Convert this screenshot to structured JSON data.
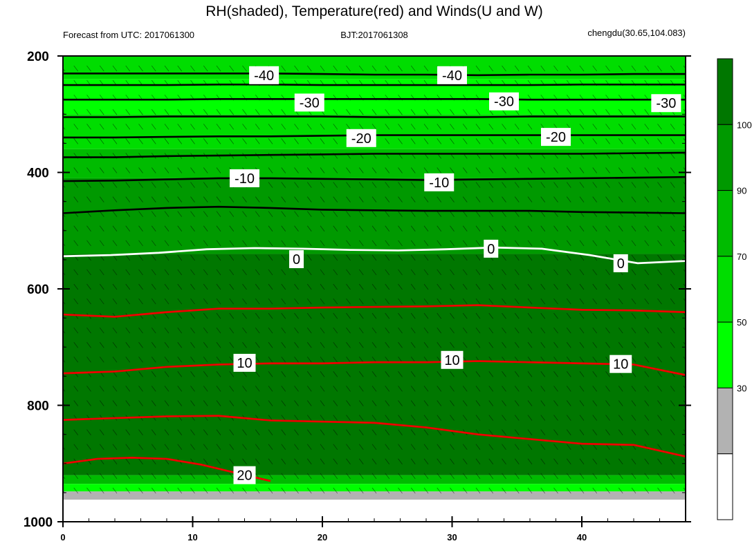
{
  "title": "RH(shaded), Temperature(red) and Winds(U and W)",
  "subtitle_left": "Forecast from UTC: 2017061300",
  "subtitle_center": "BJT:2017061308",
  "subtitle_right": "chengdu(30.65,104.083)",
  "chart_data": {
    "type": "heatmap",
    "title": "RH(shaded), Temperature(red) and Winds(U and W)",
    "xlim": [
      0,
      48
    ],
    "xticks": [
      0,
      10,
      20,
      30,
      40
    ],
    "ylim": [
      200,
      1000
    ],
    "yticks": [
      200,
      400,
      600,
      800,
      1000
    ],
    "colorbar": {
      "levels": [
        30,
        50,
        70,
        90,
        100
      ],
      "colors": [
        "#ffffff",
        "#b2b2b2",
        "#00ff00",
        "#00dd00",
        "#00bb00",
        "#009900",
        "#007700"
      ]
    },
    "rh_bands": [
      {
        "from": 200,
        "to": 240,
        "color": "#00dd00"
      },
      {
        "from": 240,
        "to": 300,
        "color": "#00ff00"
      },
      {
        "from": 300,
        "to": 360,
        "color": "#00dd00"
      },
      {
        "from": 360,
        "to": 410,
        "color": "#00bb00"
      },
      {
        "from": 410,
        "to": 540,
        "color": "#009900"
      },
      {
        "from": 540,
        "to": 920,
        "color": "#007700"
      },
      {
        "from": 920,
        "to": 935,
        "color": "#00bb00"
      },
      {
        "from": 935,
        "to": 948,
        "color": "#00ff00"
      },
      {
        "from": 948,
        "to": 962,
        "color": "#b2b2b2"
      }
    ],
    "temperature_black": [
      {
        "level": -40,
        "p": [
          230,
          230,
          230,
          230,
          230,
          231,
          232,
          232,
          233,
          232,
          232,
          231,
          231
        ]
      },
      {
        "level": -35,
        "p": [
          250,
          250,
          250,
          249,
          249,
          250,
          250,
          250,
          250,
          250,
          249,
          249,
          249
        ]
      },
      {
        "level": -30,
        "p": [
          275,
          275,
          275,
          274,
          274,
          274,
          274,
          274,
          274,
          275,
          275,
          275,
          275
        ]
      },
      {
        "level": -25,
        "p": [
          305,
          305,
          304,
          304,
          304,
          304,
          305,
          305,
          305,
          304,
          304,
          304,
          304
        ]
      },
      {
        "level": -20,
        "p": [
          340,
          340,
          339,
          338,
          338,
          337,
          336,
          336,
          336,
          336,
          336,
          336,
          336
        ]
      },
      {
        "level": -15,
        "p": [
          374,
          374,
          372,
          371,
          370,
          369,
          368,
          368,
          368,
          368,
          368,
          367,
          366
        ]
      },
      {
        "level": -10,
        "p": [
          415,
          414,
          412,
          410,
          410,
          411,
          412,
          413,
          412,
          411,
          410,
          409,
          408
        ]
      },
      {
        "level": -5,
        "p": [
          470,
          465,
          461,
          459,
          461,
          464,
          465,
          466,
          466,
          466,
          468,
          469,
          470
        ]
      }
    ],
    "temperature_white": [
      {
        "level": 0,
        "p": [
          544,
          542,
          538,
          532,
          530,
          531,
          533,
          534,
          532,
          529,
          531,
          542,
          556,
          552
        ]
      }
    ],
    "temperature_red": [
      {
        "level": 5,
        "p": [
          644,
          648,
          640,
          634,
          634,
          632,
          631,
          630,
          628,
          632,
          636,
          637,
          640
        ]
      },
      {
        "level": 10,
        "p": [
          745,
          742,
          734,
          730,
          728,
          728,
          726,
          726,
          724,
          726,
          728,
          730,
          748
        ]
      },
      {
        "level": 15,
        "p": [
          825,
          822,
          819,
          818,
          826,
          828,
          830,
          838,
          850,
          858,
          866,
          868,
          888
        ]
      },
      {
        "level": 20,
        "p": [
          900,
          892,
          890,
          892,
          902,
          916,
          930
        ]
      }
    ],
    "contour_labels": [
      {
        "x": 15.5,
        "p": 233,
        "text": "-40"
      },
      {
        "x": 30.0,
        "p": 233,
        "text": "-40"
      },
      {
        "x": 19.0,
        "p": 280,
        "text": "-30"
      },
      {
        "x": 34.0,
        "p": 278,
        "text": "-30"
      },
      {
        "x": 46.5,
        "p": 281,
        "text": "-30"
      },
      {
        "x": 23.0,
        "p": 341,
        "text": "-20"
      },
      {
        "x": 38.0,
        "p": 339,
        "text": "-20"
      },
      {
        "x": 14.0,
        "p": 410,
        "text": "-10"
      },
      {
        "x": 29.0,
        "p": 417,
        "text": "-10"
      },
      {
        "x": 18.0,
        "p": 549,
        "text": "0"
      },
      {
        "x": 33.0,
        "p": 531,
        "text": "0"
      },
      {
        "x": 43.0,
        "p": 556,
        "text": "0"
      },
      {
        "x": 14.0,
        "p": 727,
        "text": "10"
      },
      {
        "x": 30.0,
        "p": 722,
        "text": "10"
      },
      {
        "x": 43.0,
        "p": 729,
        "text": "10"
      },
      {
        "x": 14.0,
        "p": 920,
        "text": "20"
      }
    ]
  }
}
